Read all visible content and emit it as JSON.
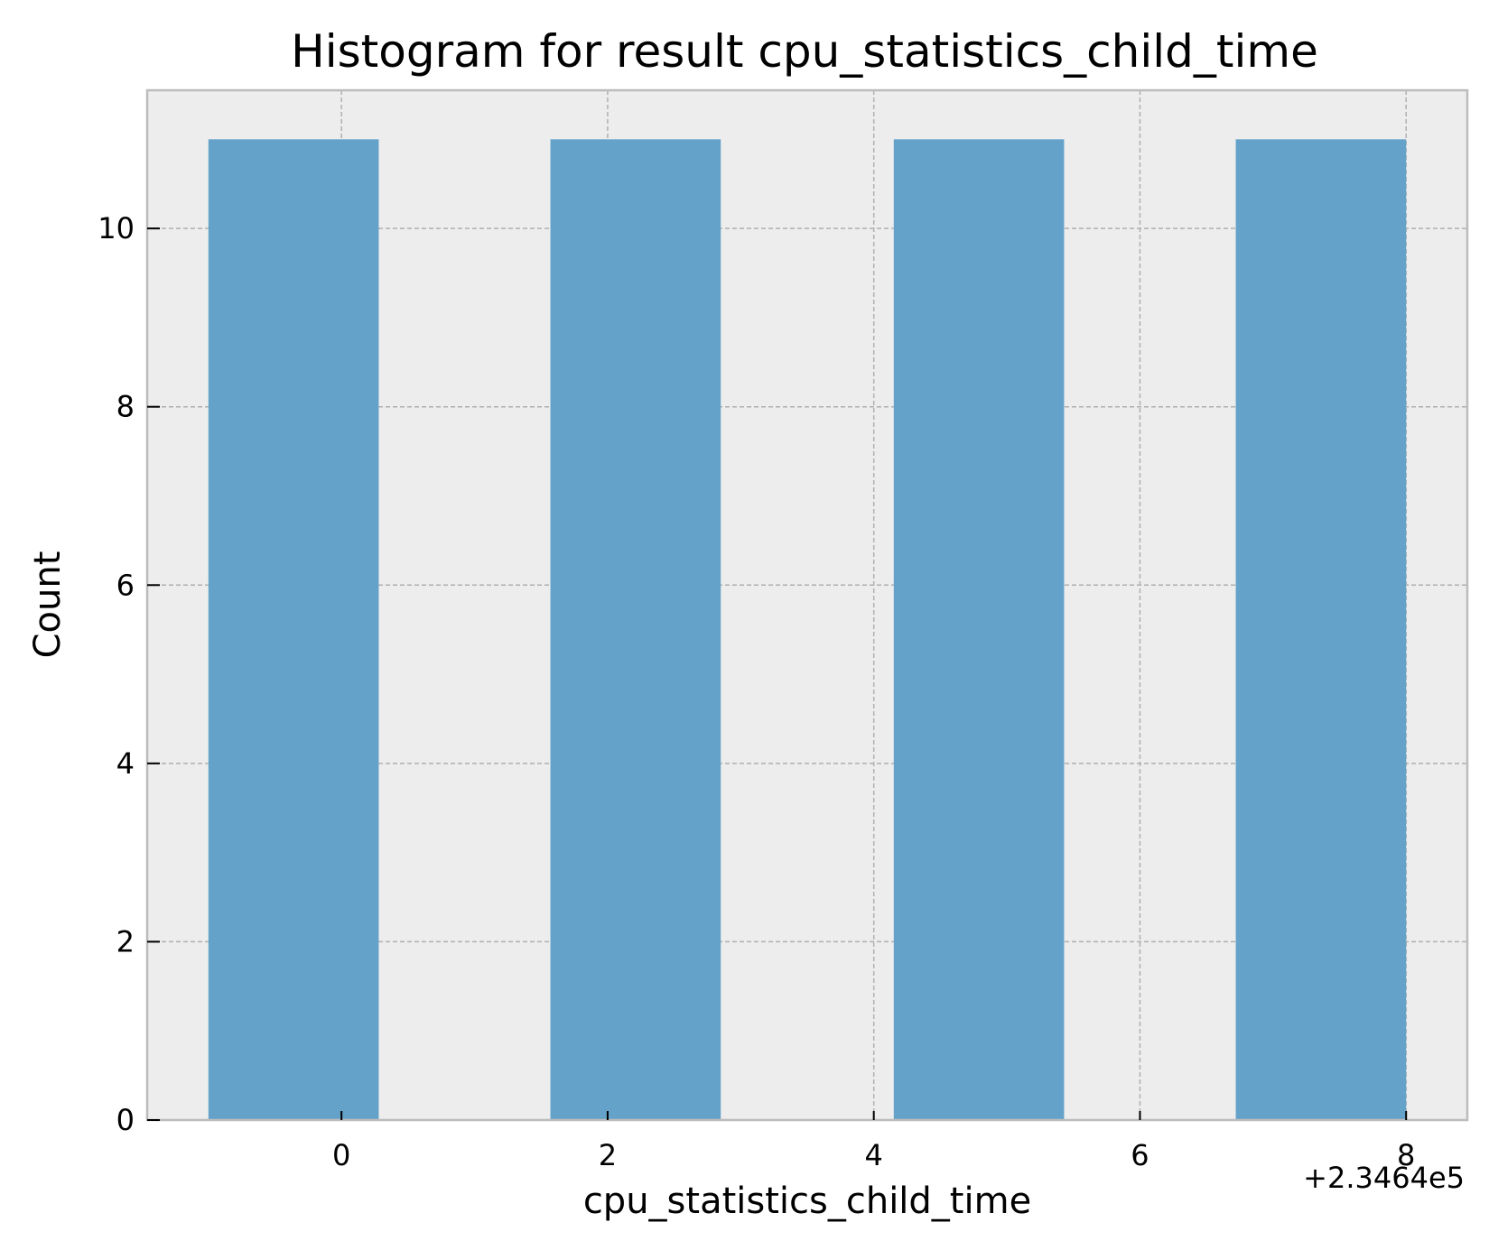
{
  "chart_data": {
    "type": "bar",
    "title": "Histogram for result cpu_statistics_child_time",
    "xlabel": "cpu_statistics_child_time",
    "ylabel": "Count",
    "x_offset_label": "+2.3464e5",
    "x_offset": 234640,
    "bins": [
      {
        "x_start": 234639.0,
        "x_end": 234640.28,
        "count": 11
      },
      {
        "x_start": 234641.57,
        "x_end": 234642.85,
        "count": 11
      },
      {
        "x_start": 234644.15,
        "x_end": 234645.43,
        "count": 11
      },
      {
        "x_start": 234646.72,
        "x_end": 234648.0,
        "count": 11
      }
    ],
    "xlim": [
      234638.54,
      234648.46
    ],
    "ylim": [
      0,
      11.55
    ],
    "x_ticks": [
      {
        "value": 0,
        "label": "0"
      },
      {
        "value": 2,
        "label": "2"
      },
      {
        "value": 4,
        "label": "4"
      },
      {
        "value": 6,
        "label": "6"
      },
      {
        "value": 8,
        "label": "8"
      }
    ],
    "y_ticks": [
      {
        "value": 0,
        "label": "0"
      },
      {
        "value": 2,
        "label": "2"
      },
      {
        "value": 4,
        "label": "4"
      },
      {
        "value": 6,
        "label": "6"
      },
      {
        "value": 8,
        "label": "8"
      },
      {
        "value": 10,
        "label": "10"
      }
    ],
    "grid": true,
    "colors": {
      "bar": "#64a2c9",
      "plot_background": "#ededed",
      "grid": "#b0b0b0",
      "spine": "#bcbcbc"
    }
  }
}
